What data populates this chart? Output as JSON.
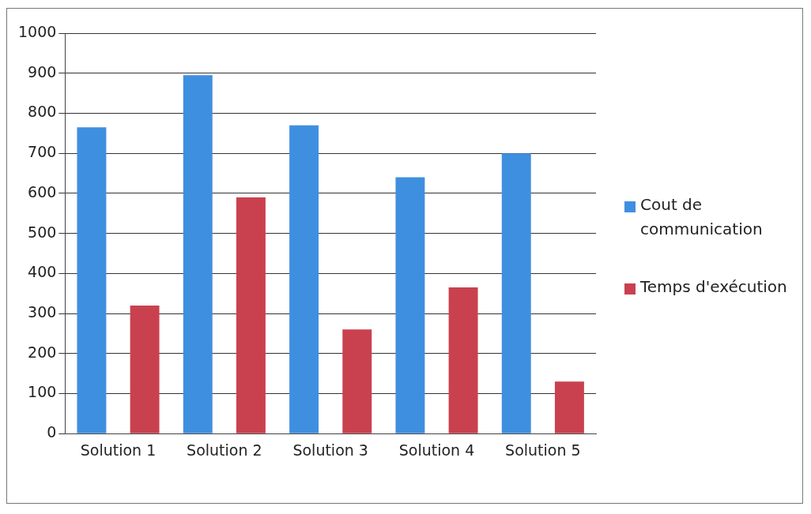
{
  "chart_data": {
    "type": "bar",
    "categories": [
      "Solution 1",
      "Solution 2",
      "Solution 3",
      "Solution 4",
      "Solution 5"
    ],
    "series": [
      {
        "name": "Cout de communication",
        "color": "#3f8fe0",
        "values": [
          765,
          895,
          770,
          640,
          700
        ]
      },
      {
        "name": "Temps d'exécution",
        "color": "#c9414f",
        "values": [
          320,
          590,
          260,
          365,
          130
        ]
      }
    ],
    "ylim": [
      0,
      1000
    ],
    "yticks": [
      0,
      100,
      200,
      300,
      400,
      500,
      600,
      700,
      800,
      900,
      1000
    ],
    "grid": "y",
    "legend": "right"
  }
}
